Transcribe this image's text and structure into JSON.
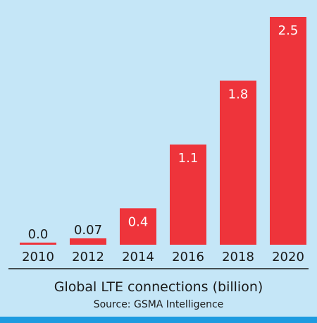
{
  "chart_data": {
    "type": "bar",
    "title": "Global LTE connections (billion)",
    "source": "Source: GSMA Intelligence",
    "categories": [
      "2010",
      "2012",
      "2014",
      "2016",
      "2018",
      "2020"
    ],
    "values": [
      0.0,
      0.07,
      0.4,
      1.1,
      1.8,
      2.5
    ],
    "value_labels": [
      "0.0",
      "0.07",
      "0.4",
      "1.1",
      "1.8",
      "2.5"
    ],
    "ylim": [
      0,
      2.5
    ],
    "grid": false,
    "bar_color": "#ee343b",
    "background_color": "#c5e6f7",
    "bottom_stripe_color": "#1e9be0"
  }
}
